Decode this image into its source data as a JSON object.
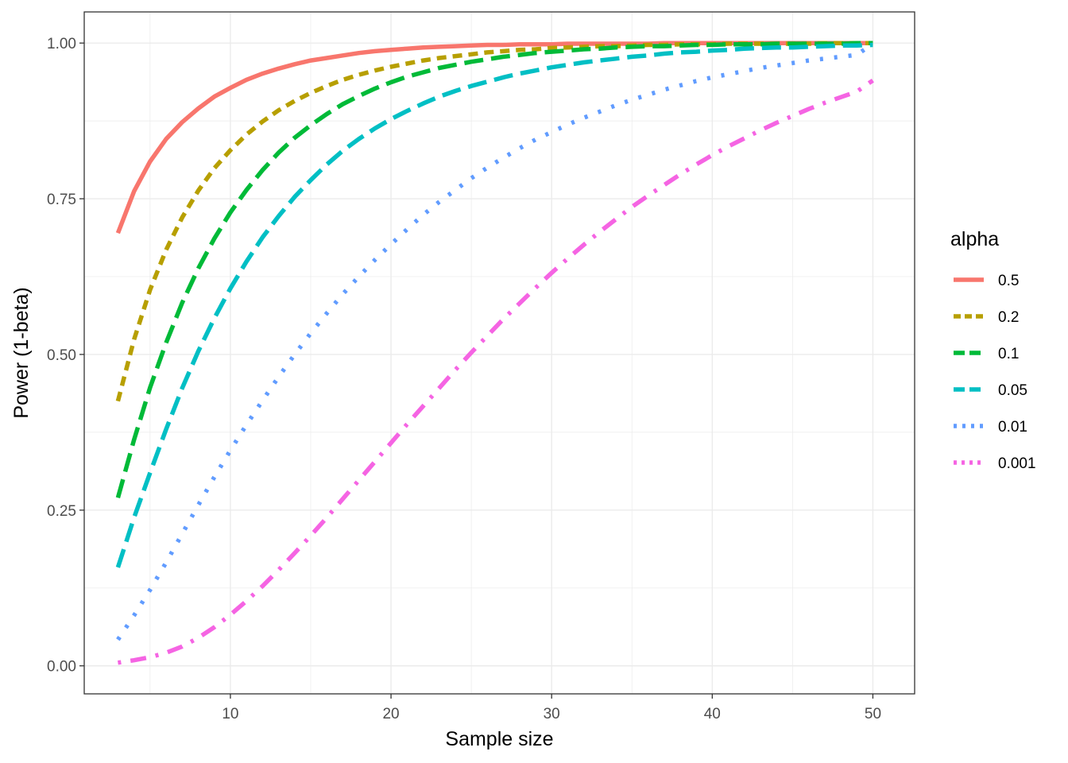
{
  "chart_data": {
    "type": "line",
    "title": "",
    "xlabel": "Sample size",
    "ylabel": "Power (1-beta)",
    "xlim": [
      0.9,
      52.6
    ],
    "ylim": [
      -0.045,
      1.05
    ],
    "x_ticks": [
      10,
      20,
      30,
      40,
      50
    ],
    "x_tick_labels": [
      "10",
      "20",
      "30",
      "40",
      "50"
    ],
    "x_minor_ticks": [
      5,
      15,
      25,
      35,
      45
    ],
    "y_ticks": [
      0,
      0.25,
      0.5,
      0.75,
      1
    ],
    "y_tick_labels": [
      "0.00",
      "0.25",
      "0.50",
      "0.75",
      "1.00"
    ],
    "y_minor_ticks": [
      0.125,
      0.375,
      0.625,
      0.875
    ],
    "grid": true,
    "legend": {
      "title": "alpha",
      "position": "right"
    },
    "x": [
      3,
      4,
      5,
      6,
      7,
      8,
      9,
      10,
      11,
      12,
      13,
      14,
      15,
      16,
      17,
      18,
      19,
      20,
      21,
      22,
      23,
      24,
      25,
      26,
      27,
      28,
      29,
      30,
      31,
      32,
      33,
      34,
      35,
      36,
      37,
      38,
      39,
      40,
      41,
      42,
      43,
      44,
      45,
      46,
      47,
      48,
      49,
      50
    ],
    "series": [
      {
        "name": "0.5",
        "color": "#F8766D",
        "linetype": "solid",
        "values": [
          0.695,
          0.762,
          0.81,
          0.846,
          0.873,
          0.895,
          0.914,
          0.928,
          0.941,
          0.951,
          0.959,
          0.966,
          0.972,
          0.976,
          0.98,
          0.984,
          0.987,
          0.989,
          0.991,
          0.993,
          0.994,
          0.995,
          0.996,
          0.997,
          0.997,
          0.998,
          0.998,
          0.998,
          0.999,
          0.999,
          0.999,
          0.999,
          0.999,
          0.999,
          1.0,
          1.0,
          1.0,
          1.0,
          1.0,
          1.0,
          1.0,
          1.0,
          1.0,
          1.0,
          1.0,
          1.0,
          1.0,
          1.0
        ]
      },
      {
        "name": "0.2",
        "color": "#B79F00",
        "linetype": "dashed",
        "values": [
          0.425,
          0.524,
          0.604,
          0.668,
          0.72,
          0.763,
          0.799,
          0.828,
          0.853,
          0.874,
          0.892,
          0.907,
          0.92,
          0.931,
          0.941,
          0.949,
          0.956,
          0.962,
          0.967,
          0.972,
          0.976,
          0.979,
          0.982,
          0.985,
          0.987,
          0.989,
          0.99,
          0.992,
          0.993,
          0.994,
          0.995,
          0.995,
          0.996,
          0.997,
          0.997,
          0.998,
          0.998,
          0.998,
          0.999,
          0.999,
          0.999,
          0.999,
          0.999,
          0.999,
          1.0,
          1.0,
          1.0,
          1.0
        ]
      },
      {
        "name": "0.1",
        "color": "#00BA38",
        "linetype": "longdash",
        "values": [
          0.27,
          0.363,
          0.447,
          0.519,
          0.583,
          0.638,
          0.686,
          0.728,
          0.764,
          0.796,
          0.824,
          0.848,
          0.868,
          0.886,
          0.902,
          0.915,
          0.927,
          0.937,
          0.946,
          0.953,
          0.96,
          0.965,
          0.97,
          0.974,
          0.978,
          0.981,
          0.984,
          0.986,
          0.988,
          0.99,
          0.991,
          0.993,
          0.994,
          0.995,
          0.995,
          0.996,
          0.997,
          0.997,
          0.998,
          0.998,
          0.998,
          0.999,
          0.999,
          0.999,
          0.999,
          0.999,
          1.0,
          1.0
        ]
      },
      {
        "name": "0.05",
        "color": "#00BFC4",
        "linetype": "longdash",
        "values": [
          0.158,
          0.238,
          0.31,
          0.38,
          0.446,
          0.505,
          0.558,
          0.606,
          0.649,
          0.688,
          0.722,
          0.753,
          0.78,
          0.805,
          0.827,
          0.846,
          0.863,
          0.878,
          0.891,
          0.903,
          0.914,
          0.923,
          0.931,
          0.938,
          0.945,
          0.951,
          0.956,
          0.961,
          0.965,
          0.969,
          0.972,
          0.975,
          0.978,
          0.98,
          0.983,
          0.985,
          0.986,
          0.988,
          0.989,
          0.991,
          0.992,
          0.993,
          0.993,
          0.994,
          0.995,
          0.996,
          0.996,
          0.997
        ]
      },
      {
        "name": "0.01",
        "color": "#619CFF",
        "linetype": "dotted",
        "values": [
          0.042,
          0.081,
          0.122,
          0.166,
          0.212,
          0.258,
          0.303,
          0.346,
          0.387,
          0.426,
          0.464,
          0.5,
          0.534,
          0.566,
          0.597,
          0.625,
          0.652,
          0.677,
          0.701,
          0.724,
          0.745,
          0.764,
          0.783,
          0.8,
          0.816,
          0.831,
          0.845,
          0.857,
          0.869,
          0.88,
          0.89,
          0.9,
          0.909,
          0.917,
          0.925,
          0.932,
          0.939,
          0.945,
          0.95,
          0.955,
          0.96,
          0.964,
          0.968,
          0.972,
          0.975,
          0.978,
          0.981,
          0.999
        ]
      },
      {
        "name": "0.001",
        "color": "#F564E3",
        "linetype": "dotdash",
        "values": [
          0.005,
          0.009,
          0.014,
          0.021,
          0.031,
          0.045,
          0.062,
          0.082,
          0.104,
          0.128,
          0.154,
          0.181,
          0.209,
          0.238,
          0.268,
          0.298,
          0.328,
          0.358,
          0.388,
          0.417,
          0.446,
          0.475,
          0.503,
          0.53,
          0.557,
          0.582,
          0.607,
          0.631,
          0.654,
          0.676,
          0.697,
          0.717,
          0.737,
          0.755,
          0.772,
          0.789,
          0.805,
          0.82,
          0.834,
          0.847,
          0.86,
          0.872,
          0.883,
          0.894,
          0.904,
          0.913,
          0.922,
          0.94
        ]
      }
    ]
  }
}
